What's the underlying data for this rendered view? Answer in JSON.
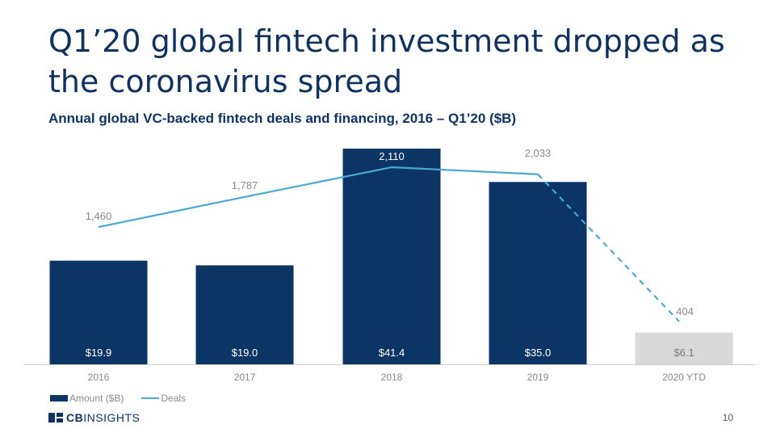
{
  "title": "Q1’20 global fintech investment dropped as the coronavirus spread",
  "subtitle": "Annual global VC-backed fintech deals and financing, 2016 – Q1’20 ($B)",
  "chart_data": {
    "type": "bar",
    "categories": [
      "2016",
      "2017",
      "2018",
      "2019",
      "2020 YTD"
    ],
    "series": [
      {
        "name": "Amount ($B)",
        "kind": "bar",
        "values": [
          19.9,
          19.0,
          41.4,
          35.0,
          6.1
        ],
        "labels": [
          "$19.9",
          "$19.0",
          "$41.4",
          "$35.0",
          "$6.1"
        ]
      },
      {
        "name": "Deals",
        "kind": "line",
        "values": [
          1460,
          1787,
          2110,
          2033,
          404
        ],
        "labels": [
          "1,460",
          "1,787",
          "2,110",
          "2,033",
          "404"
        ]
      }
    ],
    "bar_colors": [
      "#0b3565",
      "#0b3565",
      "#0b3565",
      "#0b3565",
      "#d9d9d9"
    ],
    "line_color": "#4aa8d2",
    "ylim_amount": [
      0,
      41.4
    ],
    "ylim_deals": [
      0,
      2400
    ]
  },
  "legend": {
    "amount": "Amount ($B)",
    "deals": "Deals"
  },
  "logo": {
    "cb": "CB",
    "insights": "INSIGHTS"
  },
  "page_number": "10"
}
